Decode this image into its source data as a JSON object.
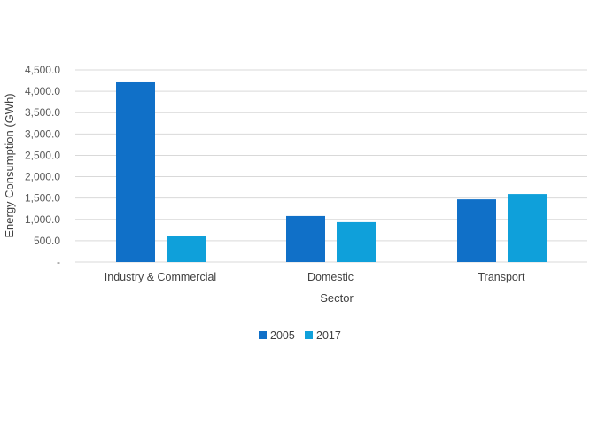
{
  "chart_data": {
    "type": "bar",
    "title": "",
    "xlabel": "Sector",
    "ylabel": "Energy Consumption (GWh)",
    "categories": [
      "Industry & Commercial",
      "Domestic",
      "Transport"
    ],
    "series": [
      {
        "name": "2005",
        "values": [
          4210,
          1080,
          1470
        ],
        "color": "#1070C8"
      },
      {
        "name": "2017",
        "values": [
          610,
          935,
          1595
        ],
        "color": "#0FA0DA"
      }
    ],
    "ylim": [
      0,
      4500
    ],
    "yticks": [
      0,
      500,
      1000,
      1500,
      2000,
      2500,
      3000,
      3500,
      4000,
      4500
    ],
    "ytick_labels": [
      "-",
      "500.0",
      "1,000.0",
      "1,500.0",
      "2,000.0",
      "2,500.0",
      "3,000.0",
      "3,500.0",
      "4,000.0",
      "4,500.0"
    ],
    "grid": true,
    "legend_position": "bottom",
    "gridline_color": "#D9D9D9"
  }
}
